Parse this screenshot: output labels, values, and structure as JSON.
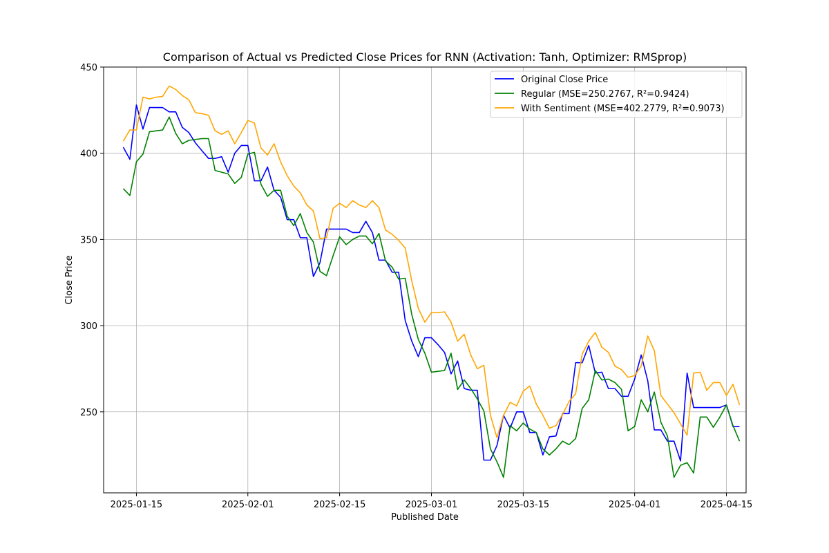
{
  "chart_data": {
    "type": "line",
    "title": "Comparison of Actual vs Predicted Close Prices for RNN (Activation: Tanh, Optimizer: RMSprop)",
    "xlabel": "Published Date",
    "ylabel": "Close Price",
    "xlim": [
      "2025-01-10",
      "2025-04-18"
    ],
    "ylim": [
      203,
      450
    ],
    "grid": true,
    "legend_position": "upper-right",
    "x_ticks": [
      "2025-01-15",
      "2025-02-01",
      "2025-02-15",
      "2025-03-01",
      "2025-03-15",
      "2025-04-01",
      "2025-04-15"
    ],
    "y_ticks": [
      250,
      300,
      350,
      400,
      450
    ],
    "x": [
      "2025-01-13",
      "2025-01-14",
      "2025-01-15",
      "2025-01-16",
      "2025-01-17",
      "2025-01-18",
      "2025-01-19",
      "2025-01-20",
      "2025-01-21",
      "2025-01-22",
      "2025-01-23",
      "2025-01-24",
      "2025-01-25",
      "2025-01-26",
      "2025-01-27",
      "2025-01-28",
      "2025-01-29",
      "2025-01-30",
      "2025-01-31",
      "2025-02-01",
      "2025-02-02",
      "2025-02-03",
      "2025-02-04",
      "2025-02-05",
      "2025-02-06",
      "2025-02-07",
      "2025-02-08",
      "2025-02-09",
      "2025-02-10",
      "2025-02-11",
      "2025-02-12",
      "2025-02-13",
      "2025-02-14",
      "2025-02-15",
      "2025-02-16",
      "2025-02-17",
      "2025-02-18",
      "2025-02-19",
      "2025-02-20",
      "2025-02-21",
      "2025-02-22",
      "2025-02-23",
      "2025-02-24",
      "2025-02-25",
      "2025-02-26",
      "2025-02-27",
      "2025-02-28",
      "2025-03-01",
      "2025-03-02",
      "2025-03-03",
      "2025-03-04",
      "2025-03-05",
      "2025-03-06",
      "2025-03-07",
      "2025-03-08",
      "2025-03-09",
      "2025-03-10",
      "2025-03-11",
      "2025-03-12",
      "2025-03-13",
      "2025-03-14",
      "2025-03-15",
      "2025-03-16",
      "2025-03-17",
      "2025-03-18",
      "2025-03-19",
      "2025-03-20",
      "2025-03-21",
      "2025-03-22",
      "2025-03-23",
      "2025-03-24",
      "2025-03-25",
      "2025-03-26",
      "2025-03-27",
      "2025-03-28",
      "2025-03-29",
      "2025-03-30",
      "2025-03-31",
      "2025-04-01",
      "2025-04-02",
      "2025-04-03",
      "2025-04-04",
      "2025-04-05",
      "2025-04-06",
      "2025-04-07",
      "2025-04-08",
      "2025-04-09",
      "2025-04-10",
      "2025-04-11",
      "2025-04-12",
      "2025-04-13",
      "2025-04-14",
      "2025-04-15",
      "2025-04-16",
      "2025-04-17"
    ],
    "series": [
      {
        "name": "Original Close Price",
        "color": "#0000ff",
        "values": [
          403.5,
          396.5,
          428,
          414,
          426.5,
          426.5,
          426.5,
          424,
          424,
          415,
          412,
          406,
          401.5,
          397,
          397,
          398,
          389,
          400,
          404.5,
          404.5,
          384,
          384,
          392,
          378.5,
          374.5,
          361.5,
          361.5,
          351,
          351,
          328.5,
          336.5,
          356,
          356,
          356,
          356,
          354,
          354,
          360.5,
          354,
          338,
          338,
          331,
          331,
          303,
          291,
          282,
          293,
          293,
          289,
          284.5,
          272,
          279.5,
          263.5,
          262.5,
          262.5,
          222,
          222,
          230.5,
          248,
          240.5,
          250,
          250,
          238,
          238,
          225,
          235.5,
          236,
          249,
          249,
          278.5,
          278.5,
          288.5,
          272.5,
          273,
          263.5,
          263.5,
          259,
          259,
          269,
          283,
          268,
          239.5,
          239.5,
          233,
          233,
          221.5,
          272.5,
          252.5,
          252.5,
          252.5,
          252.5,
          252.5,
          254,
          241.5,
          241.5
        ]
      },
      {
        "name": "Regular (MSE=250.2767, R²=0.9424)",
        "color": "#008000",
        "values": [
          379.5,
          375.5,
          395,
          399.5,
          412.5,
          413,
          413.5,
          421,
          411.5,
          405.5,
          407.5,
          408,
          408.5,
          408.5,
          390,
          389,
          388,
          382.5,
          386,
          399.5,
          400.5,
          382,
          375,
          378.5,
          378.5,
          363.5,
          358,
          365,
          354,
          348.5,
          331.5,
          329,
          340.5,
          351.5,
          347,
          350,
          352,
          352,
          347.5,
          353.5,
          337.5,
          334,
          327,
          327.5,
          306.5,
          292,
          284,
          273,
          273.5,
          274,
          284,
          263,
          268.5,
          263.5,
          257.5,
          250.5,
          228.5,
          221,
          212,
          242,
          239,
          243.5,
          240,
          238,
          228.5,
          225,
          228.5,
          233,
          231,
          234.5,
          252,
          257,
          274,
          268.5,
          269,
          267,
          263,
          239,
          241.5,
          257,
          250,
          261.5,
          244,
          236,
          212,
          219,
          220.5,
          214.5,
          247,
          247,
          241,
          247,
          254,
          242,
          233
        ]
      },
      {
        "name": "With Sentiment (MSE=402.2779, R²=0.9073)",
        "color": "#ffa500",
        "values": [
          407,
          413.5,
          413.5,
          432.5,
          431.5,
          432.5,
          433,
          439,
          437,
          433.5,
          431,
          423.5,
          423,
          422,
          413,
          411,
          413,
          405.5,
          412,
          419,
          417.5,
          403,
          399,
          405.5,
          395,
          387,
          381,
          377,
          370,
          366.5,
          350.5,
          351,
          368,
          371,
          368.5,
          372.5,
          370,
          368.5,
          372.5,
          368.5,
          355.5,
          353,
          349.5,
          345,
          326,
          310,
          302,
          307.5,
          307.5,
          308,
          302,
          291,
          295,
          283,
          275,
          277,
          248,
          235,
          248,
          255.5,
          253.5,
          262,
          265,
          254.5,
          248,
          240.5,
          242,
          248.5,
          256,
          260.5,
          283.5,
          291,
          296,
          287.5,
          284.5,
          276.5,
          274.5,
          270,
          271,
          276.5,
          294,
          285.5,
          259.5,
          254.5,
          249.5,
          243,
          236.5,
          272.5,
          273,
          262.5,
          267,
          267,
          259.5,
          266,
          254
        ]
      }
    ]
  }
}
